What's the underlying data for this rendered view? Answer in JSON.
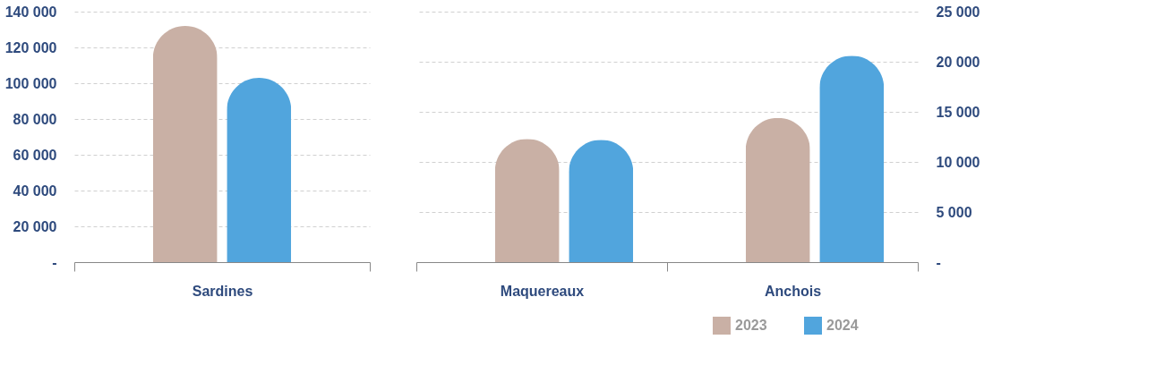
{
  "chart_data": [
    {
      "type": "bar",
      "categories": [
        "Sardines"
      ],
      "series": [
        {
          "color": "#c9b0a5",
          "values": [
            132000
          ]
        },
        {
          "color": "#51a5dd",
          "values": [
            103000
          ]
        }
      ],
      "ylim": [
        0,
        140000
      ],
      "yticks": [
        {
          "value": 0,
          "label": "-"
        },
        {
          "value": 20000,
          "label": "20 000"
        },
        {
          "value": 40000,
          "label": "40 000"
        },
        {
          "value": 60000,
          "label": "60 000"
        },
        {
          "value": 80000,
          "label": "80 000"
        },
        {
          "value": 100000,
          "label": "100 000"
        },
        {
          "value": 120000,
          "label": "120 000"
        },
        {
          "value": 140000,
          "label": "140 000"
        }
      ],
      "grid": "y",
      "legend": false
    },
    {
      "type": "bar",
      "categories": [
        "Maquereaux",
        "Anchois"
      ],
      "series": [
        {
          "name": "2023",
          "color": "#c9b0a5",
          "values": [
            12300,
            14400
          ],
          "axis": "y2"
        },
        {
          "name": "2024",
          "color": "#51a5dd",
          "values": [
            12200,
            20600
          ],
          "axis": "y2"
        }
      ],
      "y2lim": [
        0,
        25000
      ],
      "y2ticks": [
        {
          "value": 0,
          "label": "-"
        },
        {
          "value": 5000,
          "label": "5 000"
        },
        {
          "value": 10000,
          "label": "10 000"
        },
        {
          "value": 15000,
          "label": "15 000"
        },
        {
          "value": 20000,
          "label": "20 000"
        },
        {
          "value": 25000,
          "label": "25 000"
        }
      ],
      "grid": "y2",
      "legend": "bottom right"
    }
  ]
}
